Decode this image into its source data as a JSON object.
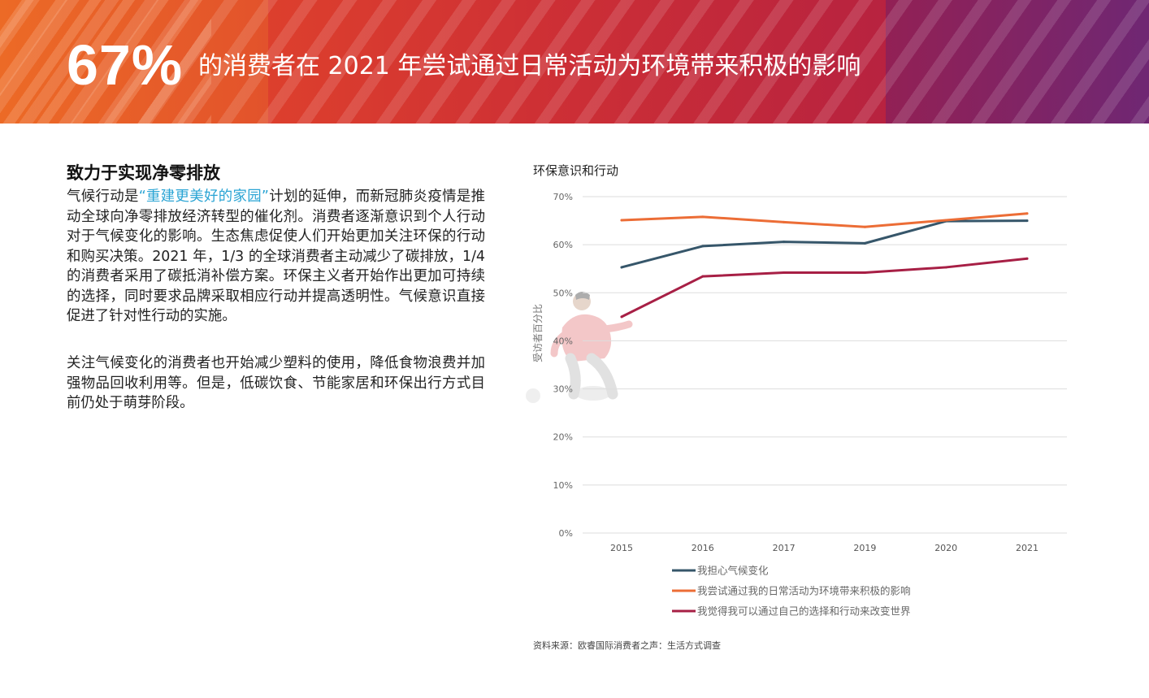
{
  "banner": {
    "stat": "67%",
    "headline": "的消费者在 2021 年尝试通过日常活动为环境带来积极的影响"
  },
  "section": {
    "heading": "致力于实现净零排放",
    "p1_prefix": "气候行动是",
    "p1_link": "“重建更美好的家园”",
    "p1_rest": "计划的延伸，而新冠肺炎疫情是推动全球向净零排放经济转型的催化剂。消费者逐渐意识到个人行动对于气候变化的影响。生态焦虑促使人们开始更加关注环保的行动和购买决策。2021 年，1/3 的全球消费者主动减少了碳排放，1/4 的消费者采用了碳抵消补偿方案。环保主义者开始作出更加可持续的选择，同时要求品牌采取相应行动并提高透明性。气候意识直接促进了针对性行动的实施。",
    "p2": "关注气候变化的消费者也开始减少塑料的使用，降低食物浪费并加强物品回收利用等。但是，低碳饮食、节能家居和环保出行方式目前仍处于萌芽阶段。"
  },
  "chart_data": {
    "type": "line",
    "title": "环保意识和行动",
    "xlabel": "",
    "ylabel": "受访者百分比",
    "categories": [
      "2015",
      "2016",
      "2017",
      "2019",
      "2020",
      "2021"
    ],
    "ylim": [
      0,
      70
    ],
    "yticks": [
      0,
      10,
      20,
      30,
      40,
      50,
      60,
      70
    ],
    "ytick_labels": [
      "0%",
      "10%",
      "20%",
      "30%",
      "40%",
      "50%",
      "60%",
      "70%"
    ],
    "grid": true,
    "legend_position": "bottom",
    "series": [
      {
        "name": "我担心气候变化",
        "color": "#36566a",
        "values": [
          55.3,
          59.7,
          60.6,
          60.3,
          64.9,
          65.0
        ]
      },
      {
        "name": "我尝试通过我的日常活动为环境带来积极的影响",
        "color": "#ec6d36",
        "values": [
          65.1,
          65.8,
          64.7,
          63.7,
          65.1,
          66.5
        ]
      },
      {
        "name": "我觉得我可以通过自己的选择和行动来改变世界",
        "color": "#a71f45",
        "values": [
          45.0,
          53.4,
          54.2,
          54.2,
          55.3,
          57.1
        ]
      }
    ]
  },
  "source": "资料来源：欧睿国际消费者之声：生活方式调查"
}
